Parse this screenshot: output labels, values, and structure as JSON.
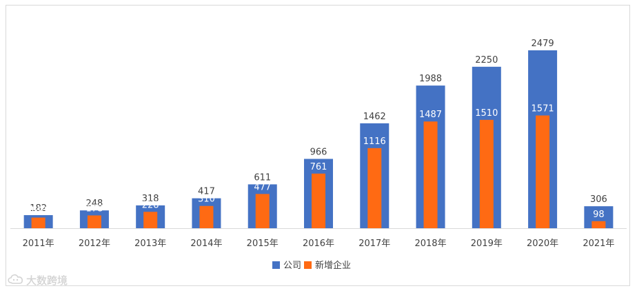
{
  "chart_data": {
    "type": "bar",
    "categories": [
      "2011年",
      "2012年",
      "2013年",
      "2014年",
      "2015年",
      "2016年",
      "2017年",
      "2018年",
      "2019年",
      "2020年",
      "2021年"
    ],
    "series": [
      {
        "name": "公司",
        "color": "#4472C4",
        "values": [
          182,
          248,
          318,
          417,
          611,
          966,
          1462,
          1988,
          2250,
          2479,
          306
        ]
      },
      {
        "name": "新增企业",
        "color": "#FF6A13",
        "values": [
          148,
          178,
          228,
          310,
          477,
          761,
          1116,
          1487,
          1510,
          1571,
          98
        ]
      }
    ],
    "title": "",
    "xlabel": "",
    "ylabel": "",
    "ylim": [
      0,
      2479
    ],
    "grid": false,
    "legend_position": "bottom-center",
    "bar_mode": "overlap",
    "axis_visible": false
  },
  "watermark": {
    "text": "大数跨境",
    "icon": "cloud-logo-icon"
  }
}
